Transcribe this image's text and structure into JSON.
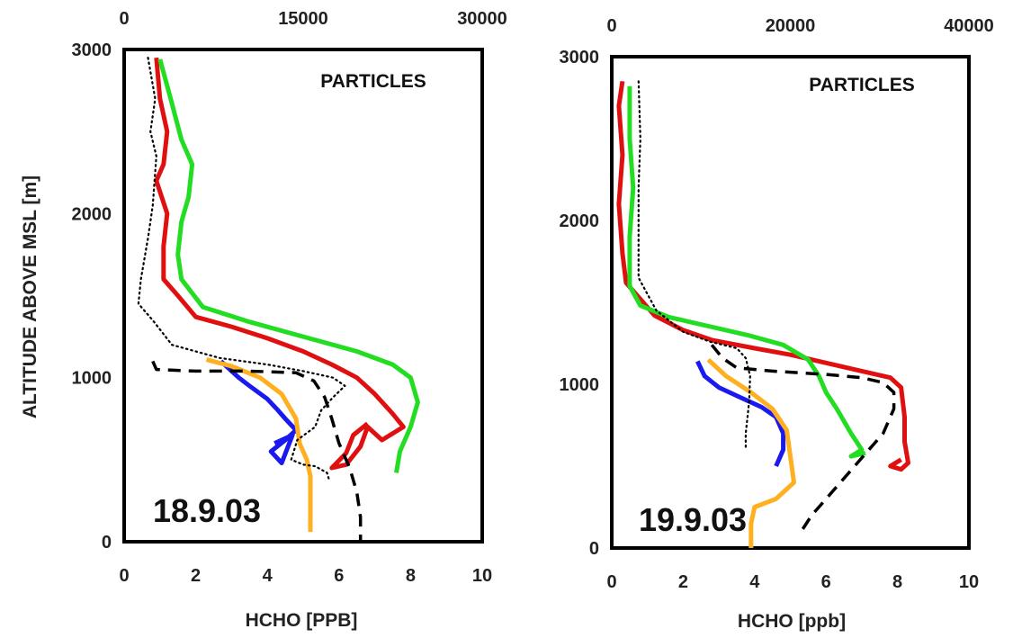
{
  "chart_data": [
    {
      "type": "line",
      "ylabel": "ALTITUDE ABOVE MSL [m]",
      "xlabel": "HCHO [PPB]",
      "annotations": [
        "PARTICLES",
        "18.9.03"
      ],
      "xlim": [
        0,
        10
      ],
      "ylim": [
        0,
        3000
      ],
      "top_xlim": [
        0,
        30000
      ],
      "x_ticks": [
        "0",
        "2",
        "4",
        "6",
        "8",
        "10"
      ],
      "y_ticks": [
        "0",
        "1000",
        "2000",
        "3000"
      ],
      "top_ticks": [
        "0",
        "15000",
        "30000"
      ],
      "series": [
        {
          "color": "#e01010",
          "dash": "solid",
          "axis": "bottom",
          "points": [
            [
              0.9,
              2950
            ],
            [
              1.0,
              2700
            ],
            [
              1.2,
              2500
            ],
            [
              1.1,
              2300
            ],
            [
              0.9,
              2200
            ],
            [
              1.2,
              2000
            ],
            [
              1.1,
              1800
            ],
            [
              1.1,
              1600
            ],
            [
              1.5,
              1500
            ],
            [
              2.0,
              1370
            ],
            [
              3.0,
              1310
            ],
            [
              4.0,
              1240
            ],
            [
              5.0,
              1160
            ],
            [
              5.8,
              1080
            ],
            [
              6.5,
              1000
            ],
            [
              7.0,
              900
            ],
            [
              7.5,
              780
            ],
            [
              7.8,
              700
            ],
            [
              7.2,
              620
            ],
            [
              6.8,
              700
            ],
            [
              6.6,
              580
            ],
            [
              6.2,
              470
            ],
            [
              5.8,
              450
            ],
            [
              6.2,
              540
            ],
            [
              6.4,
              650
            ],
            [
              6.8,
              720
            ]
          ]
        },
        {
          "color": "#22dd22",
          "dash": "solid",
          "axis": "bottom",
          "points": [
            [
              1.0,
              2940
            ],
            [
              1.3,
              2700
            ],
            [
              1.6,
              2450
            ],
            [
              1.9,
              2300
            ],
            [
              1.8,
              2100
            ],
            [
              1.6,
              1950
            ],
            [
              1.5,
              1750
            ],
            [
              1.6,
              1600
            ],
            [
              2.2,
              1430
            ],
            [
              3.5,
              1340
            ],
            [
              5.0,
              1250
            ],
            [
              6.5,
              1160
            ],
            [
              7.5,
              1080
            ],
            [
              8.0,
              1000
            ],
            [
              8.2,
              850
            ],
            [
              8.0,
              700
            ],
            [
              7.7,
              550
            ],
            [
              7.6,
              420
            ]
          ]
        },
        {
          "color": "#1a1aee",
          "dash": "solid",
          "axis": "bottom",
          "points": [
            [
              2.7,
              1100
            ],
            [
              3.2,
              1000
            ],
            [
              3.5,
              950
            ],
            [
              4.0,
              870
            ],
            [
              4.3,
              800
            ],
            [
              4.5,
              750
            ],
            [
              4.8,
              680
            ],
            [
              4.5,
              620
            ],
            [
              4.1,
              550
            ],
            [
              4.4,
              480
            ],
            [
              4.7,
              650
            ],
            [
              4.2,
              600
            ]
          ]
        },
        {
          "color": "#ffb020",
          "dash": "solid",
          "axis": "bottom",
          "points": [
            [
              2.3,
              1110
            ],
            [
              3.0,
              1070
            ],
            [
              3.8,
              1000
            ],
            [
              4.4,
              900
            ],
            [
              4.8,
              750
            ],
            [
              4.9,
              600
            ],
            [
              5.1,
              500
            ],
            [
              5.2,
              400
            ],
            [
              5.2,
              200
            ],
            [
              5.2,
              60
            ]
          ]
        },
        {
          "color": "#000000",
          "dash": "dotted",
          "axis": "top",
          "points": [
            [
              2000,
              2950
            ],
            [
              2600,
              2700
            ],
            [
              2200,
              2500
            ],
            [
              2700,
              2350
            ],
            [
              2400,
              2050
            ],
            [
              2000,
              1850
            ],
            [
              1400,
              1600
            ],
            [
              1200,
              1450
            ],
            [
              2400,
              1350
            ],
            [
              4000,
              1200
            ],
            [
              8000,
              1120
            ],
            [
              12000,
              1080
            ],
            [
              15000,
              1040
            ],
            [
              17500,
              1000
            ],
            [
              18500,
              950
            ],
            [
              17500,
              880
            ],
            [
              16500,
              800
            ],
            [
              16000,
              700
            ],
            [
              14500,
              620
            ],
            [
              14000,
              500
            ],
            [
              15000,
              470
            ],
            [
              16000,
              460
            ],
            [
              17000,
              420
            ],
            [
              17200,
              370
            ]
          ]
        },
        {
          "color": "#000000",
          "dash": "dashed",
          "axis": "bottom",
          "points": [
            [
              0.8,
              1100
            ],
            [
              0.9,
              1050
            ],
            [
              2.0,
              1040
            ],
            [
              3.5,
              1040
            ],
            [
              4.8,
              1030
            ],
            [
              5.3,
              980
            ],
            [
              5.6,
              880
            ],
            [
              5.8,
              750
            ],
            [
              6.0,
              600
            ],
            [
              6.3,
              450
            ],
            [
              6.5,
              300
            ],
            [
              6.6,
              150
            ],
            [
              6.6,
              0
            ]
          ]
        }
      ]
    },
    {
      "type": "line",
      "xlabel": "HCHO [ppb]",
      "annotations": [
        "PARTICLES",
        "19.9.03"
      ],
      "xlim": [
        0,
        10
      ],
      "ylim": [
        0,
        3000
      ],
      "top_xlim": [
        0,
        40000
      ],
      "x_ticks": [
        "0",
        "2",
        "4",
        "6",
        "8",
        "10"
      ],
      "y_ticks": [
        "0",
        "1000",
        "2000",
        "3000"
      ],
      "top_ticks": [
        "0",
        "20000",
        "40000"
      ],
      "series": [
        {
          "color": "#e01010",
          "dash": "solid",
          "axis": "bottom",
          "points": [
            [
              0.3,
              2850
            ],
            [
              0.2,
              2700
            ],
            [
              0.3,
              2400
            ],
            [
              0.2,
              2100
            ],
            [
              0.3,
              1800
            ],
            [
              0.4,
              1620
            ],
            [
              1.2,
              1420
            ],
            [
              2.0,
              1330
            ],
            [
              2.8,
              1270
            ],
            [
              4.0,
              1220
            ],
            [
              5.0,
              1180
            ],
            [
              6.0,
              1130
            ],
            [
              7.0,
              1080
            ],
            [
              7.8,
              1040
            ],
            [
              8.1,
              980
            ],
            [
              8.2,
              800
            ],
            [
              8.2,
              650
            ],
            [
              8.3,
              520
            ],
            [
              8.1,
              480
            ],
            [
              7.8,
              500
            ],
            [
              8.1,
              540
            ]
          ]
        },
        {
          "color": "#22dd22",
          "dash": "solid",
          "axis": "bottom",
          "points": [
            [
              0.5,
              2820
            ],
            [
              0.5,
              2500
            ],
            [
              0.6,
              2200
            ],
            [
              0.5,
              1900
            ],
            [
              0.5,
              1600
            ],
            [
              0.8,
              1480
            ],
            [
              1.6,
              1410
            ],
            [
              2.6,
              1360
            ],
            [
              3.8,
              1300
            ],
            [
              4.8,
              1240
            ],
            [
              5.5,
              1150
            ],
            [
              5.8,
              1050
            ],
            [
              6.0,
              950
            ],
            [
              6.3,
              850
            ],
            [
              6.7,
              700
            ],
            [
              7.0,
              600
            ],
            [
              6.7,
              560
            ],
            [
              7.1,
              580
            ]
          ]
        },
        {
          "color": "#1a1aee",
          "dash": "solid",
          "axis": "bottom",
          "points": [
            [
              2.4,
              1140
            ],
            [
              2.6,
              1050
            ],
            [
              3.0,
              980
            ],
            [
              3.6,
              920
            ],
            [
              4.2,
              860
            ],
            [
              4.6,
              800
            ],
            [
              4.8,
              700
            ],
            [
              4.8,
              600
            ],
            [
              4.6,
              500
            ]
          ]
        },
        {
          "color": "#ffb020",
          "dash": "solid",
          "axis": "bottom",
          "points": [
            [
              2.7,
              1150
            ],
            [
              3.2,
              1050
            ],
            [
              3.9,
              950
            ],
            [
              4.5,
              850
            ],
            [
              4.9,
              720
            ],
            [
              5.0,
              560
            ],
            [
              5.1,
              400
            ],
            [
              4.6,
              300
            ],
            [
              4.0,
              250
            ],
            [
              3.9,
              150
            ],
            [
              3.9,
              0
            ]
          ]
        },
        {
          "color": "#000000",
          "dash": "dotted",
          "axis": "top",
          "points": [
            [
              3000,
              2850
            ],
            [
              3200,
              2500
            ],
            [
              3000,
              2200
            ],
            [
              3000,
              1900
            ],
            [
              3000,
              1650
            ],
            [
              5000,
              1450
            ],
            [
              8000,
              1320
            ],
            [
              11000,
              1260
            ],
            [
              14000,
              1220
            ],
            [
              15000,
              1160
            ],
            [
              15500,
              1050
            ],
            [
              15400,
              900
            ],
            [
              15200,
              800
            ],
            [
              15000,
              700
            ],
            [
              15000,
              600
            ]
          ]
        },
        {
          "color": "#000000",
          "dash": "dashed",
          "axis": "bottom",
          "points": [
            [
              2.8,
              1240
            ],
            [
              3.1,
              1160
            ],
            [
              3.5,
              1100
            ],
            [
              4.5,
              1080
            ],
            [
              6.0,
              1060
            ],
            [
              7.0,
              1040
            ],
            [
              7.6,
              1010
            ],
            [
              7.9,
              950
            ],
            [
              7.9,
              850
            ],
            [
              7.6,
              700
            ],
            [
              7.0,
              550
            ],
            [
              6.4,
              400
            ],
            [
              6.0,
              300
            ],
            [
              5.6,
              200
            ],
            [
              5.3,
              100
            ]
          ]
        }
      ]
    }
  ]
}
